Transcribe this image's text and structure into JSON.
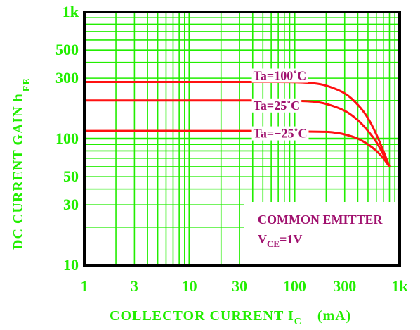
{
  "chart_data": {
    "type": "line",
    "x_scale": "log",
    "y_scale": "log",
    "xlim": [
      1,
      1000
    ],
    "ylim": [
      10,
      1000
    ],
    "grid": true,
    "x_tick_labels": [
      {
        "value": 1,
        "label": "1"
      },
      {
        "value": 3,
        "label": "3"
      },
      {
        "value": 10,
        "label": "10"
      },
      {
        "value": 30,
        "label": "30"
      },
      {
        "value": 100,
        "label": "100"
      },
      {
        "value": 300,
        "label": "300"
      },
      {
        "value": 1000,
        "label": "1k"
      }
    ],
    "y_tick_labels": [
      {
        "value": 10,
        "label": "10"
      },
      {
        "value": 30,
        "label": "30"
      },
      {
        "value": 50,
        "label": "50"
      },
      {
        "value": 100,
        "label": "100"
      },
      {
        "value": 300,
        "label": "300"
      },
      {
        "value": 500,
        "label": "500"
      },
      {
        "value": 1000,
        "label": "1k"
      }
    ],
    "xlabel": {
      "main": "COLLECTOR CURRENT I",
      "sub": "C",
      "unit": "(mA)"
    },
    "ylabel": {
      "main": "DC CURRENT GAIN h",
      "sub": "FE"
    },
    "series": [
      {
        "name": "Ta=100˚C",
        "x": [
          1,
          50,
          100,
          150,
          200,
          300,
          400,
          500,
          600,
          700,
          800
        ],
        "y": [
          280,
          280,
          279,
          274,
          262,
          228,
          185,
          145,
          108,
          80,
          60
        ]
      },
      {
        "name": "Ta=25˚C",
        "x": [
          1,
          50,
          100,
          150,
          200,
          300,
          400,
          500,
          600,
          700,
          800
        ],
        "y": [
          200,
          200,
          199,
          196,
          188,
          166,
          140,
          115,
          94,
          75,
          60
        ]
      },
      {
        "name": "Ta=−25˚C",
        "x": [
          1,
          50,
          100,
          200,
          250,
          300,
          400,
          500,
          600,
          700,
          800
        ],
        "y": [
          115,
          115,
          114,
          113,
          111,
          108,
          100,
          90,
          80,
          70,
          60
        ]
      }
    ],
    "series_label_anchor": [
      {
        "x": 220,
        "y": 280
      },
      {
        "x": 220,
        "y": 163
      },
      {
        "x": 220,
        "y": 98
      }
    ],
    "annotation": {
      "line1": "COMMON EMITTER",
      "line2_main": "V",
      "line2_sub": "CE",
      "line2_rest": "=1V"
    },
    "colors": {
      "grid": "#22ee00",
      "frame": "#000000",
      "curve": "#ff1111",
      "label": "#a0106e",
      "text": "#22ee00"
    }
  }
}
